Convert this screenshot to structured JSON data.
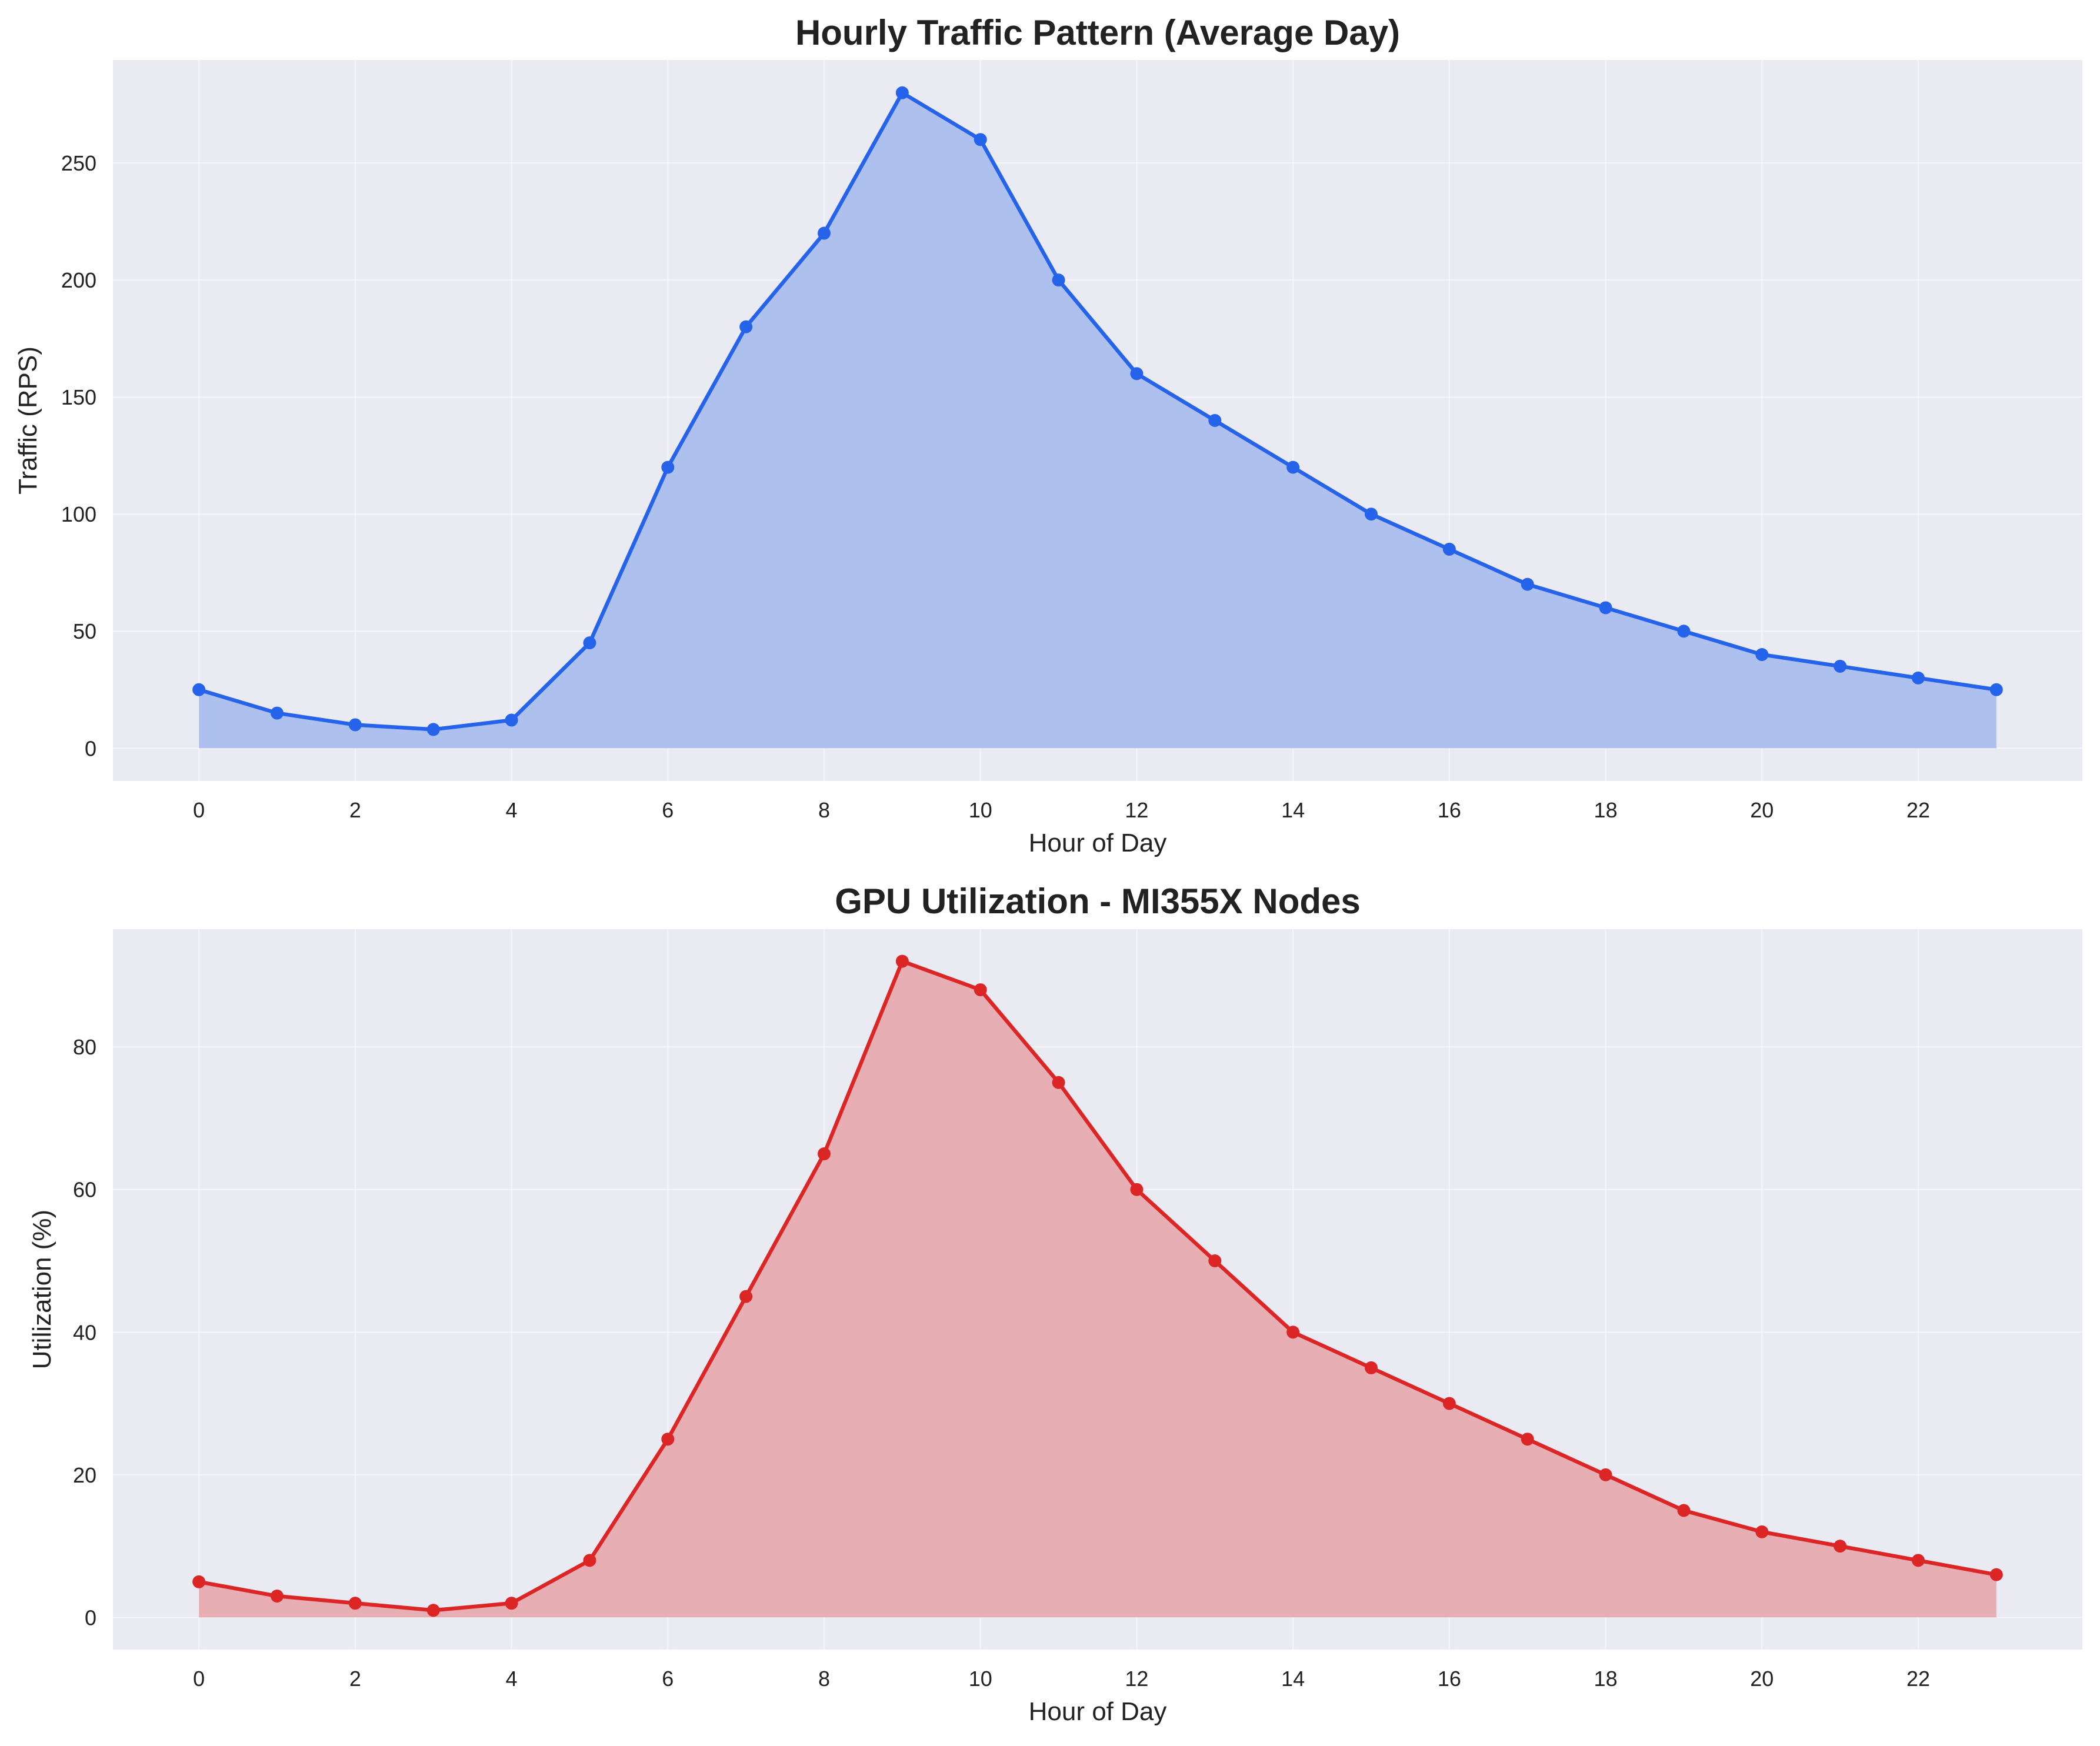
{
  "chart_data": [
    {
      "type": "area",
      "title": "Hourly Traffic Pattern (Average Day)",
      "xlabel": "Hour of Day",
      "ylabel": "Traffic (RPS)",
      "x": [
        0,
        1,
        2,
        3,
        4,
        5,
        6,
        7,
        8,
        9,
        10,
        11,
        12,
        13,
        14,
        15,
        16,
        17,
        18,
        19,
        20,
        21,
        22,
        23
      ],
      "series": [
        {
          "values": [
            25,
            15,
            10,
            8,
            12,
            45,
            120,
            180,
            220,
            280,
            260,
            200,
            160,
            140,
            120,
            100,
            85,
            70,
            60,
            50,
            40,
            35,
            30,
            25
          ],
          "color": "#2563EB",
          "fill": "#AEC1EE"
        }
      ],
      "xlim": [
        -1.1,
        24.1
      ],
      "ylim": [
        -14,
        294
      ],
      "xticks": [
        0,
        2,
        4,
        6,
        8,
        10,
        12,
        14,
        16,
        18,
        20,
        22
      ],
      "yticks": [
        0,
        50,
        100,
        150,
        200,
        250
      ],
      "grid": true
    },
    {
      "type": "area",
      "title": "GPU Utilization - MI355X Nodes",
      "xlabel": "Hour of Day",
      "ylabel": "Utilization (%)",
      "x": [
        0,
        1,
        2,
        3,
        4,
        5,
        6,
        7,
        8,
        9,
        10,
        11,
        12,
        13,
        14,
        15,
        16,
        17,
        18,
        19,
        20,
        21,
        22,
        23
      ],
      "series": [
        {
          "values": [
            5,
            3,
            2,
            1,
            2,
            8,
            25,
            45,
            65,
            92,
            88,
            75,
            60,
            50,
            40,
            35,
            30,
            25,
            20,
            15,
            12,
            10,
            8,
            6
          ],
          "color": "#DC2626",
          "fill": "#E7AEB3"
        }
      ],
      "xlim": [
        -1.1,
        24.1
      ],
      "ylim": [
        -4.5,
        96.5
      ],
      "xticks": [
        0,
        2,
        4,
        6,
        8,
        10,
        12,
        14,
        16,
        18,
        20,
        22
      ],
      "yticks": [
        0,
        20,
        40,
        60,
        80
      ],
      "grid": true
    }
  ]
}
